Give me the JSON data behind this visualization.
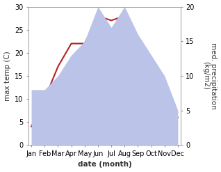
{
  "months": [
    "Jan",
    "Feb",
    "Mar",
    "Apr",
    "May",
    "Jun",
    "Jul",
    "Aug",
    "Sep",
    "Oct",
    "Nov",
    "Dec"
  ],
  "month_positions": [
    0,
    1,
    2,
    3,
    4,
    5,
    6,
    7,
    8,
    9,
    10,
    11
  ],
  "temperature": [
    4,
    10,
    17,
    22,
    22,
    28,
    27,
    28,
    22,
    13,
    7,
    6
  ],
  "precipitation": [
    8,
    8,
    10,
    13,
    15,
    20,
    17,
    20,
    16,
    13,
    10,
    5
  ],
  "temp_color": "#b22222",
  "precip_fill_color": "#bbc4e8",
  "temp_ylim": [
    0,
    30
  ],
  "precip_ylim": [
    0,
    20
  ],
  "xlabel": "date (month)",
  "ylabel_left": "max temp (C)",
  "ylabel_right": "med. precipitation\n(kg/m2)",
  "label_fontsize": 7.5,
  "tick_fontsize": 7,
  "background_color": "#ffffff"
}
